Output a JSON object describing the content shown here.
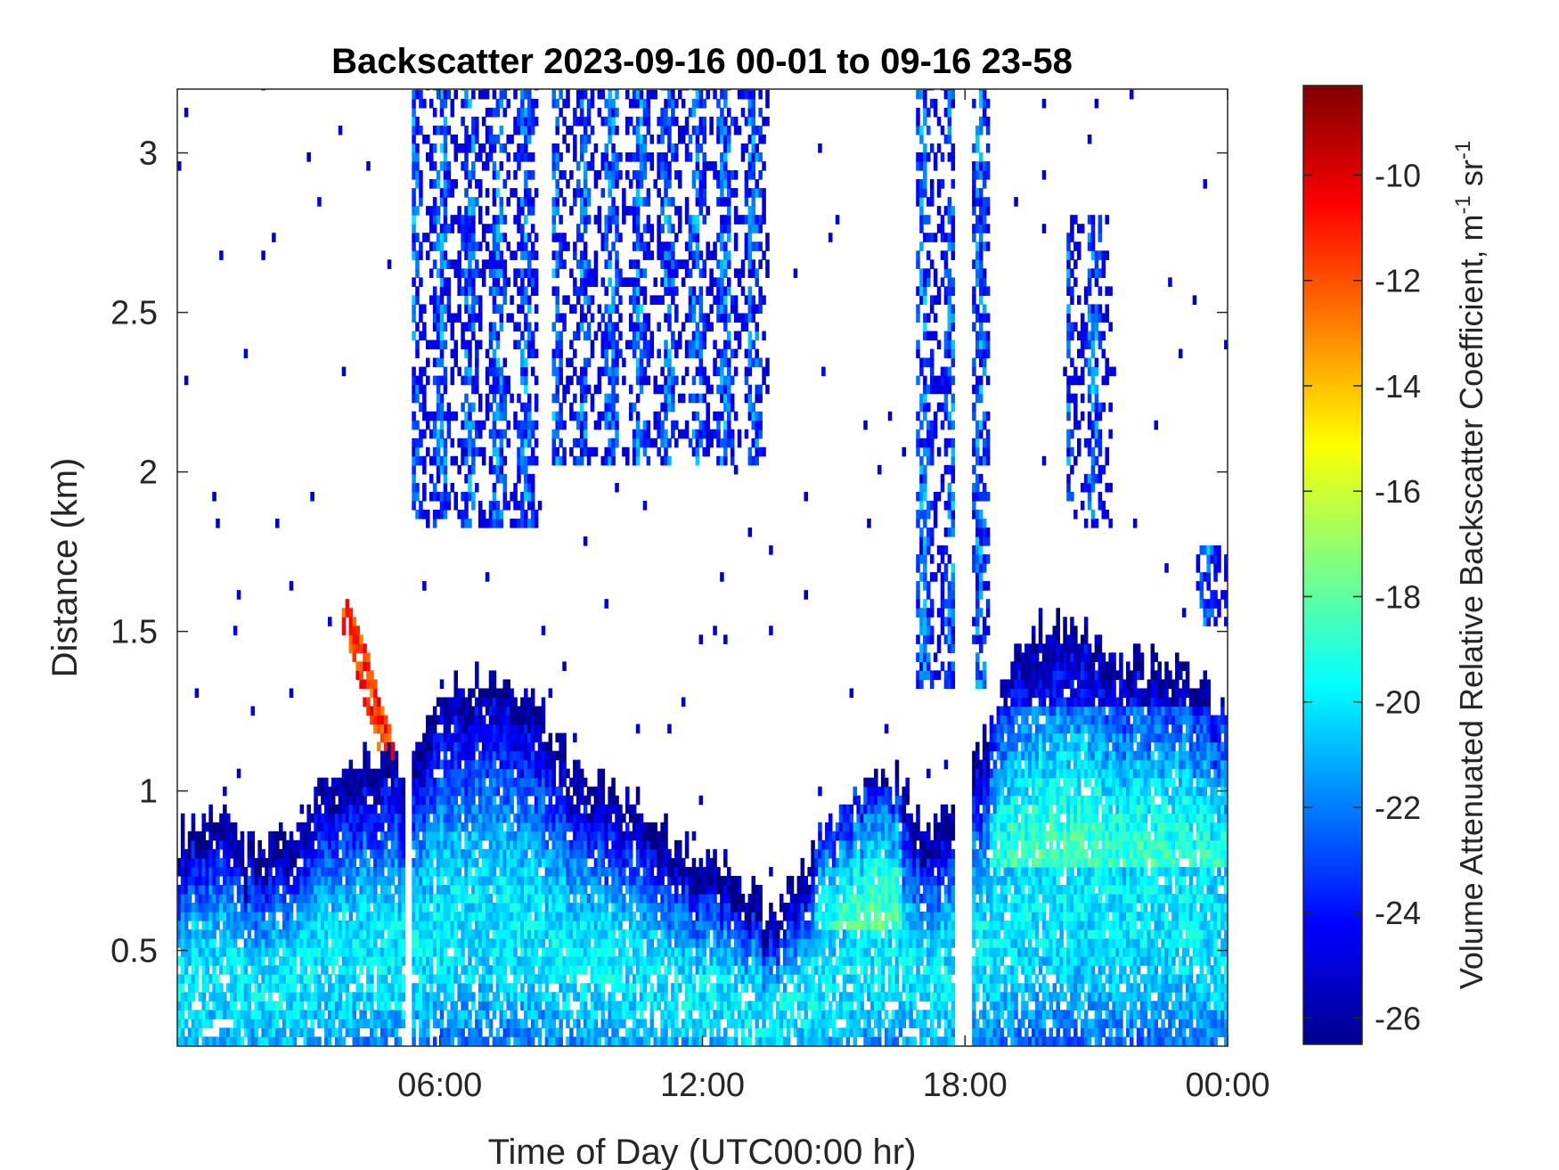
{
  "chart_data": {
    "type": "heatmap",
    "title": "Backscatter 2023-09-16 00-01 to 09-16 23-58",
    "xlabel": "Time of Day (UTC00:00 hr)",
    "ylabel": "Distance (km)",
    "xlim": [
      0,
      24
    ],
    "ylim": [
      0.2,
      3.2
    ],
    "xticks": [
      6,
      12,
      18,
      24
    ],
    "xtick_labels": [
      "06:00",
      "12:00",
      "18:00",
      "00:00"
    ],
    "yticks": [
      0.5,
      1,
      1.5,
      2,
      2.5,
      3
    ],
    "ytick_labels": [
      "0.5",
      "1",
      "1.5",
      "2",
      "2.5",
      "3"
    ],
    "colorbar": {
      "label": "Volume Attenuated Relative Backscatter Coefficient, m",
      "label_sup1": "-1",
      "label_mid": " sr",
      "label_sup2": "-1",
      "range": [
        -26.5,
        -8.3
      ],
      "ticks": [
        -26,
        -24,
        -22,
        -20,
        -18,
        -16,
        -14,
        -12,
        -10
      ],
      "tick_labels": [
        "-26",
        "-24",
        "-22",
        "-20",
        "-18",
        "-16",
        "-14",
        "-12",
        "-10"
      ],
      "colormap": "jet"
    },
    "boundary_layer_top_km": [
      {
        "t": 0.0,
        "h": 0.85
      },
      {
        "t": 1.0,
        "h": 0.95
      },
      {
        "t": 1.4,
        "h": 0.8
      },
      {
        "t": 2.5,
        "h": 0.85
      },
      {
        "t": 3.5,
        "h": 1.05
      },
      {
        "t": 4.5,
        "h": 1.1
      },
      {
        "t": 5.2,
        "h": 1.05
      },
      {
        "t": 6.0,
        "h": 1.3
      },
      {
        "t": 7.0,
        "h": 1.35
      },
      {
        "t": 8.0,
        "h": 1.3
      },
      {
        "t": 9.0,
        "h": 1.05
      },
      {
        "t": 10.5,
        "h": 0.95
      },
      {
        "t": 11.5,
        "h": 0.8
      },
      {
        "t": 12.5,
        "h": 0.75
      },
      {
        "t": 13.5,
        "h": 0.6
      },
      {
        "t": 14.5,
        "h": 0.8
      },
      {
        "t": 15.5,
        "h": 1.0
      },
      {
        "t": 16.3,
        "h": 1.05
      },
      {
        "t": 17.0,
        "h": 0.9
      },
      {
        "t": 17.8,
        "h": 0.9
      },
      {
        "t": 18.5,
        "h": 1.2
      },
      {
        "t": 19.5,
        "h": 1.5
      },
      {
        "t": 20.5,
        "h": 1.5
      },
      {
        "t": 21.5,
        "h": 1.4
      },
      {
        "t": 22.5,
        "h": 1.4
      },
      {
        "t": 24.0,
        "h": 1.25
      }
    ],
    "elevated_aerosol_layer": {
      "t_start": 3.7,
      "t_end": 4.9,
      "h_low": 1.05,
      "h_high": 1.6,
      "value_db_max": -10
    },
    "upper_cloud_regions": [
      {
        "t_start": 5.2,
        "t_end": 8.2,
        "h_low": 1.8,
        "h_high": 3.2
      },
      {
        "t_start": 8.5,
        "t_end": 13.5,
        "h_low": 2.0,
        "h_high": 3.2
      },
      {
        "t_start": 16.8,
        "t_end": 18.5,
        "h_low": 1.3,
        "h_high": 3.2
      },
      {
        "t_start": 20.3,
        "t_end": 21.3,
        "h_low": 1.8,
        "h_high": 2.8
      },
      {
        "t_start": 23.2,
        "t_end": 24.0,
        "h_low": 1.5,
        "h_high": 1.75
      }
    ],
    "data_gaps_hours": [
      [
        5.15,
        5.3
      ],
      [
        17.7,
        18.15
      ]
    ]
  }
}
